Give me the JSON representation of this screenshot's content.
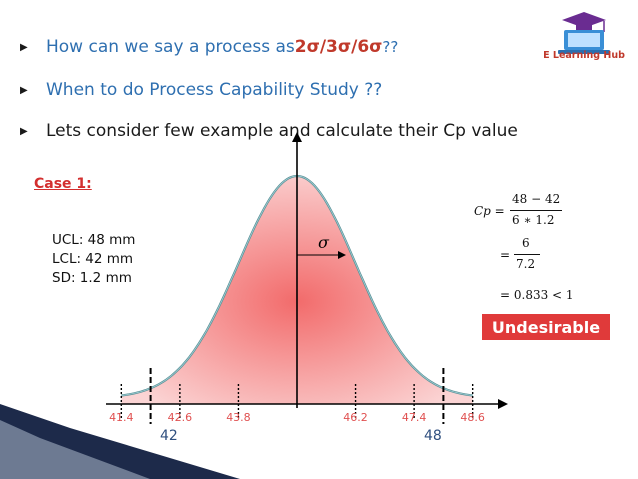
{
  "bullets": [
    {
      "prefix": "How can we say a process as ",
      "emph": "2σ/3σ/6σ",
      "suffix": " ??"
    },
    {
      "text": "When to do Process Capability Study ??"
    },
    {
      "text": "Lets consider few example and calculate their Cp value"
    }
  ],
  "logo": {
    "text": "E Learning Hub"
  },
  "case": {
    "label": "Case 1:"
  },
  "specs": [
    "UCL: 48 mm",
    "LCL: 42 mm",
    "SD: 1.2 mm"
  ],
  "formula": {
    "lhs": "Cp =",
    "num1": "48 − 42",
    "den1": "6 ∗ 1.2",
    "eq2": "=",
    "num2": "6",
    "den2": "7.2",
    "result": "= 0.833 < 1"
  },
  "verdict": "Undesirable",
  "chart_data": {
    "type": "line",
    "x_ticks": [
      "41.4",
      "42.6",
      "43.8",
      "46.2",
      "47.4",
      "48.6"
    ],
    "limit_labels": [
      "42",
      "48"
    ],
    "mean_x": 45,
    "sigma_label": "σ",
    "colors": {
      "fill": "#f26b6b",
      "curve": "#5a8f95",
      "tick_text": "#e05050",
      "limit_text": "#2f4f7f"
    }
  }
}
